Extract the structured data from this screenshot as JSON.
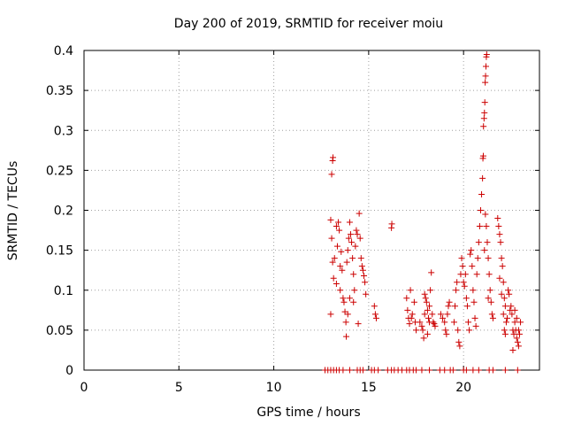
{
  "chart_data": {
    "type": "scatter",
    "title": "Day 200 of 2019, SRMTID for receiver moiu",
    "xlabel": "GPS time / hours",
    "ylabel": "SRMTID / TECUs",
    "xlim": [
      0,
      24
    ],
    "ylim": [
      0,
      0.4
    ],
    "x_ticks": [
      0,
      5,
      10,
      15,
      20
    ],
    "y_ticks": [
      0,
      0.05,
      0.1,
      0.15,
      0.2,
      0.25,
      0.3,
      0.35,
      0.4
    ],
    "x_tick_labels": [
      "0",
      "5",
      "10",
      "15",
      "20"
    ],
    "y_tick_labels": [
      "0",
      "0.05",
      "0.1",
      "0.15",
      "0.2",
      "0.25",
      "0.3",
      "0.35",
      "0.4"
    ],
    "grid": true,
    "marker": "+",
    "series": [
      {
        "name": "SRMTID",
        "color": "#cc0000",
        "points": [
          [
            12.7,
            0
          ],
          [
            12.85,
            0
          ],
          [
            13.0,
            0
          ],
          [
            13.15,
            0
          ],
          [
            13.3,
            0
          ],
          [
            13.45,
            0
          ],
          [
            13.65,
            0
          ],
          [
            14.0,
            0
          ],
          [
            14.4,
            0
          ],
          [
            14.55,
            0
          ],
          [
            14.7,
            0
          ],
          [
            15.15,
            0
          ],
          [
            15.3,
            0
          ],
          [
            15.5,
            0
          ],
          [
            16.0,
            0
          ],
          [
            16.2,
            0
          ],
          [
            16.35,
            0
          ],
          [
            16.55,
            0
          ],
          [
            16.75,
            0
          ],
          [
            17.0,
            0
          ],
          [
            17.15,
            0
          ],
          [
            17.35,
            0
          ],
          [
            17.5,
            0
          ],
          [
            17.8,
            0
          ],
          [
            18.2,
            0
          ],
          [
            18.75,
            0
          ],
          [
            19.0,
            0
          ],
          [
            19.3,
            0
          ],
          [
            19.45,
            0
          ],
          [
            20.0,
            0
          ],
          [
            20.15,
            0
          ],
          [
            20.5,
            0
          ],
          [
            20.8,
            0
          ],
          [
            21.35,
            0
          ],
          [
            21.55,
            0
          ],
          [
            22.2,
            0
          ],
          [
            22.85,
            0
          ],
          [
            13.05,
            0.245
          ],
          [
            13.1,
            0.262
          ],
          [
            13.12,
            0.266
          ],
          [
            13.0,
            0.188
          ],
          [
            13.05,
            0.165
          ],
          [
            13.1,
            0.135
          ],
          [
            13.15,
            0.115
          ],
          [
            13.0,
            0.07
          ],
          [
            13.2,
            0.14
          ],
          [
            13.3,
            0.18
          ],
          [
            13.35,
            0.155
          ],
          [
            13.4,
            0.185
          ],
          [
            13.45,
            0.175
          ],
          [
            13.3,
            0.108
          ],
          [
            13.5,
            0.13
          ],
          [
            13.55,
            0.148
          ],
          [
            13.6,
            0.125
          ],
          [
            13.65,
            0.09
          ],
          [
            13.7,
            0.085
          ],
          [
            13.75,
            0.073
          ],
          [
            13.8,
            0.06
          ],
          [
            13.82,
            0.042
          ],
          [
            13.85,
            0.135
          ],
          [
            13.9,
            0.15
          ],
          [
            13.95,
            0.165
          ],
          [
            14.0,
            0.185
          ],
          [
            14.05,
            0.17
          ],
          [
            14.1,
            0.16
          ],
          [
            14.15,
            0.14
          ],
          [
            14.2,
            0.12
          ],
          [
            14.25,
            0.1
          ],
          [
            14.3,
            0.155
          ],
          [
            14.35,
            0.175
          ],
          [
            14.4,
            0.17
          ],
          [
            14.45,
            0.058
          ],
          [
            14.5,
            0.196
          ],
          [
            14.55,
            0.165
          ],
          [
            14.6,
            0.14
          ],
          [
            14.65,
            0.13
          ],
          [
            14.7,
            0.125
          ],
          [
            14.75,
            0.118
          ],
          [
            14.8,
            0.11
          ],
          [
            14.85,
            0.095
          ],
          [
            13.5,
            0.1
          ],
          [
            13.9,
            0.07
          ],
          [
            14.0,
            0.09
          ],
          [
            14.2,
            0.085
          ],
          [
            15.3,
            0.08
          ],
          [
            15.35,
            0.07
          ],
          [
            15.4,
            0.065
          ],
          [
            16.2,
            0.178
          ],
          [
            16.22,
            0.183
          ],
          [
            17.0,
            0.09
          ],
          [
            17.05,
            0.075
          ],
          [
            17.1,
            0.065
          ],
          [
            17.15,
            0.058
          ],
          [
            17.2,
            0.1
          ],
          [
            17.25,
            0.065
          ],
          [
            17.3,
            0.07
          ],
          [
            17.4,
            0.085
          ],
          [
            17.45,
            0.06
          ],
          [
            17.5,
            0.05
          ],
          [
            17.7,
            0.06
          ],
          [
            17.8,
            0.055
          ],
          [
            17.85,
            0.05
          ],
          [
            17.9,
            0.04
          ],
          [
            17.95,
            0.07
          ],
          [
            18.0,
            0.09
          ],
          [
            18.05,
            0.085
          ],
          [
            18.1,
            0.075
          ],
          [
            18.15,
            0.065
          ],
          [
            18.2,
            0.08
          ],
          [
            18.25,
            0.1
          ],
          [
            18.3,
            0.122
          ],
          [
            18.35,
            0.07
          ],
          [
            18.4,
            0.06
          ],
          [
            18.45,
            0.058
          ],
          [
            18.5,
            0.055
          ],
          [
            18.1,
            0.045
          ],
          [
            17.95,
            0.095
          ],
          [
            18.2,
            0.06
          ],
          [
            18.8,
            0.07
          ],
          [
            18.9,
            0.065
          ],
          [
            19.0,
            0.06
          ],
          [
            19.05,
            0.05
          ],
          [
            19.1,
            0.045
          ],
          [
            19.15,
            0.07
          ],
          [
            19.2,
            0.08
          ],
          [
            19.25,
            0.085
          ],
          [
            19.5,
            0.06
          ],
          [
            19.55,
            0.08
          ],
          [
            19.6,
            0.1
          ],
          [
            19.65,
            0.11
          ],
          [
            19.7,
            0.05
          ],
          [
            19.75,
            0.035
          ],
          [
            19.8,
            0.03
          ],
          [
            19.85,
            0.12
          ],
          [
            19.9,
            0.14
          ],
          [
            19.95,
            0.13
          ],
          [
            20.0,
            0.11
          ],
          [
            20.05,
            0.105
          ],
          [
            20.1,
            0.12
          ],
          [
            20.15,
            0.09
          ],
          [
            20.2,
            0.08
          ],
          [
            20.25,
            0.06
          ],
          [
            20.3,
            0.05
          ],
          [
            20.35,
            0.145
          ],
          [
            20.4,
            0.15
          ],
          [
            20.45,
            0.13
          ],
          [
            20.5,
            0.1
          ],
          [
            20.55,
            0.085
          ],
          [
            20.6,
            0.065
          ],
          [
            20.65,
            0.055
          ],
          [
            20.7,
            0.12
          ],
          [
            20.75,
            0.14
          ],
          [
            20.8,
            0.16
          ],
          [
            20.85,
            0.18
          ],
          [
            20.9,
            0.2
          ],
          [
            20.95,
            0.22
          ],
          [
            21.0,
            0.24
          ],
          [
            21.02,
            0.265
          ],
          [
            21.04,
            0.268
          ],
          [
            21.05,
            0.305
          ],
          [
            21.08,
            0.315
          ],
          [
            21.1,
            0.322
          ],
          [
            21.12,
            0.335
          ],
          [
            21.14,
            0.36
          ],
          [
            21.16,
            0.368
          ],
          [
            21.18,
            0.38
          ],
          [
            21.2,
            0.392
          ],
          [
            21.22,
            0.395
          ],
          [
            21.15,
            0.195
          ],
          [
            21.2,
            0.18
          ],
          [
            21.25,
            0.16
          ],
          [
            21.3,
            0.14
          ],
          [
            21.35,
            0.12
          ],
          [
            21.4,
            0.1
          ],
          [
            21.45,
            0.085
          ],
          [
            21.5,
            0.07
          ],
          [
            21.55,
            0.065
          ],
          [
            21.3,
            0.09
          ],
          [
            21.1,
            0.15
          ],
          [
            21.8,
            0.19
          ],
          [
            21.85,
            0.18
          ],
          [
            21.9,
            0.17
          ],
          [
            21.95,
            0.16
          ],
          [
            22.0,
            0.14
          ],
          [
            22.05,
            0.13
          ],
          [
            22.1,
            0.11
          ],
          [
            22.15,
            0.09
          ],
          [
            22.2,
            0.08
          ],
          [
            22.25,
            0.06
          ],
          [
            21.9,
            0.115
          ],
          [
            22.0,
            0.095
          ],
          [
            22.1,
            0.07
          ],
          [
            22.15,
            0.05
          ],
          [
            22.2,
            0.045
          ],
          [
            22.3,
            0.065
          ],
          [
            22.35,
            0.1
          ],
          [
            22.4,
            0.095
          ],
          [
            22.45,
            0.075
          ],
          [
            22.5,
            0.08
          ],
          [
            22.55,
            0.07
          ],
          [
            22.6,
            0.05
          ],
          [
            22.65,
            0.045
          ],
          [
            22.7,
            0.06
          ],
          [
            22.75,
            0.05
          ],
          [
            22.8,
            0.04
          ],
          [
            22.85,
            0.035
          ],
          [
            22.9,
            0.03
          ],
          [
            22.95,
            0.045
          ],
          [
            23.0,
            0.06
          ],
          [
            22.6,
            0.025
          ],
          [
            22.7,
            0.075
          ],
          [
            22.8,
            0.065
          ],
          [
            22.9,
            0.05
          ]
        ]
      }
    ]
  }
}
